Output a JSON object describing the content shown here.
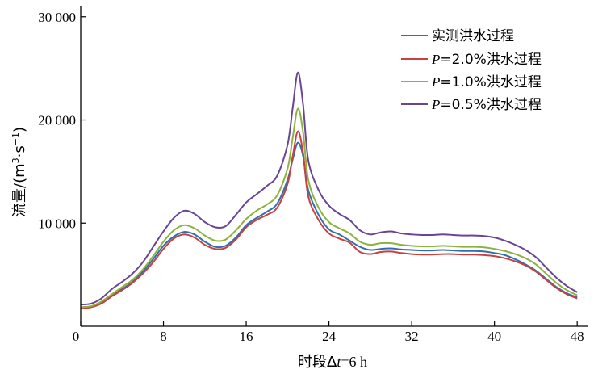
{
  "chart_data": {
    "type": "line",
    "xlabel_prefix": "时段Δ",
    "xlabel_var": "t",
    "xlabel_suffix": "=6 h",
    "ylabel_main": "流量/(m",
    "ylabel_sup1": "3",
    "ylabel_mid": "·s",
    "ylabel_sup2": "−1",
    "ylabel_end": ")",
    "xlim": [
      0,
      49
    ],
    "ylim": [
      0,
      31000
    ],
    "x_ticks": [
      0,
      8,
      16,
      24,
      32,
      40,
      48
    ],
    "x_tick_labels": [
      "0",
      "8",
      "16",
      "24",
      "32",
      "40",
      "48"
    ],
    "y_ticks": [
      10000,
      20000,
      30000
    ],
    "y_tick_labels": [
      "10 000",
      "20 000",
      "30 000"
    ],
    "legend_position": "top-right",
    "x": [
      0,
      1,
      2,
      3,
      4,
      5,
      6,
      7,
      8,
      9,
      10,
      11,
      12,
      13,
      14,
      15,
      16,
      17,
      18,
      19,
      20,
      20.5,
      21,
      21.5,
      22,
      23,
      24,
      25,
      26,
      27,
      28,
      29,
      30,
      31,
      32,
      33,
      34,
      35,
      36,
      37,
      38,
      39,
      40,
      41,
      42,
      43,
      44,
      45,
      46,
      47,
      48
    ],
    "series": [
      {
        "name": "实测洪水过程",
        "color": "#2f6fb0",
        "values": [
          1800,
          1900,
          2300,
          3000,
          3600,
          4300,
          5300,
          6500,
          7800,
          8700,
          9150,
          8900,
          8200,
          7700,
          7800,
          8600,
          9800,
          10500,
          11100,
          11900,
          14200,
          16200,
          17800,
          16500,
          13200,
          10800,
          9400,
          8900,
          8300,
          7700,
          7400,
          7500,
          7550,
          7450,
          7400,
          7350,
          7350,
          7400,
          7350,
          7300,
          7300,
          7250,
          7100,
          6900,
          6500,
          6000,
          5400,
          4600,
          3800,
          3200,
          2800
        ]
      },
      {
        "name": "P=2.0%洪水过程",
        "name_var": "P",
        "name_rest": "=2.0%洪水过程",
        "color": "#c84040",
        "values": [
          1750,
          1850,
          2200,
          2900,
          3500,
          4200,
          5100,
          6200,
          7500,
          8500,
          8900,
          8600,
          7900,
          7500,
          7600,
          8400,
          9600,
          10300,
          10800,
          11500,
          13800,
          16500,
          18900,
          16800,
          12600,
          10300,
          9000,
          8500,
          8100,
          7200,
          7000,
          7200,
          7250,
          7100,
          7000,
          6950,
          6950,
          7000,
          7000,
          6950,
          6950,
          6900,
          6800,
          6600,
          6300,
          5900,
          5300,
          4500,
          3700,
          3100,
          2700
        ]
      },
      {
        "name": "P=1.0%洪水过程",
        "name_var": "P",
        "name_rest": "=1.0%洪水过程",
        "color": "#8db33e",
        "values": [
          1850,
          1950,
          2400,
          3100,
          3800,
          4500,
          5500,
          6800,
          8200,
          9300,
          9800,
          9500,
          8800,
          8300,
          8400,
          9300,
          10400,
          11200,
          11800,
          12700,
          15300,
          18300,
          21100,
          18800,
          14200,
          11500,
          10100,
          9500,
          9000,
          8200,
          7900,
          8050,
          8050,
          7900,
          7800,
          7750,
          7750,
          7800,
          7750,
          7700,
          7700,
          7650,
          7500,
          7300,
          7000,
          6600,
          6000,
          5100,
          4200,
          3500,
          3000
        ]
      },
      {
        "name": "P=0.5%洪水过程",
        "name_var": "P",
        "name_rest": "=0.5%洪水过程",
        "color": "#6a4596",
        "values": [
          2100,
          2200,
          2700,
          3600,
          4300,
          5100,
          6200,
          7700,
          9200,
          10500,
          11200,
          10900,
          10100,
          9600,
          9700,
          10800,
          12000,
          12800,
          13600,
          14600,
          17600,
          21200,
          24600,
          21500,
          16100,
          13200,
          11700,
          10900,
          10300,
          9300,
          8900,
          9100,
          9200,
          9000,
          8900,
          8850,
          8850,
          8900,
          8850,
          8800,
          8800,
          8750,
          8600,
          8300,
          7900,
          7400,
          6700,
          5700,
          4700,
          3900,
          3300
        ]
      }
    ]
  }
}
